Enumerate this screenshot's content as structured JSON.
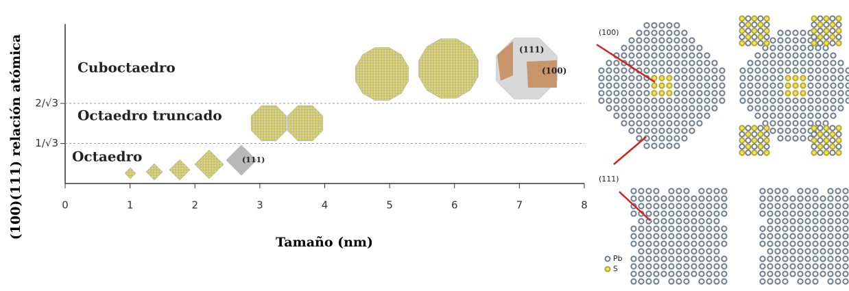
{
  "chart_data": {
    "type": "regions",
    "xlabel": "Tamaño (nm)",
    "ylabel": "(100)(111) relación atómica",
    "xlim": [
      0,
      8
    ],
    "xticks": [
      0,
      1,
      2,
      3,
      4,
      5,
      6,
      7,
      8
    ],
    "ylim": [
      0,
      2.3
    ],
    "yticks": [
      {
        "value": 0.577,
        "label": "1/√3"
      },
      {
        "value": 1.155,
        "label": "2/√3"
      }
    ],
    "grid": true,
    "annotations": [
      "Cuboctaedro",
      "Octaedro truncado",
      "Octaedro",
      "(111)",
      "(111)",
      "(100)"
    ]
  },
  "side_panel": {
    "labels": [
      "(100)",
      "(111)"
    ],
    "legend": [
      "Pb",
      "S"
    ]
  }
}
